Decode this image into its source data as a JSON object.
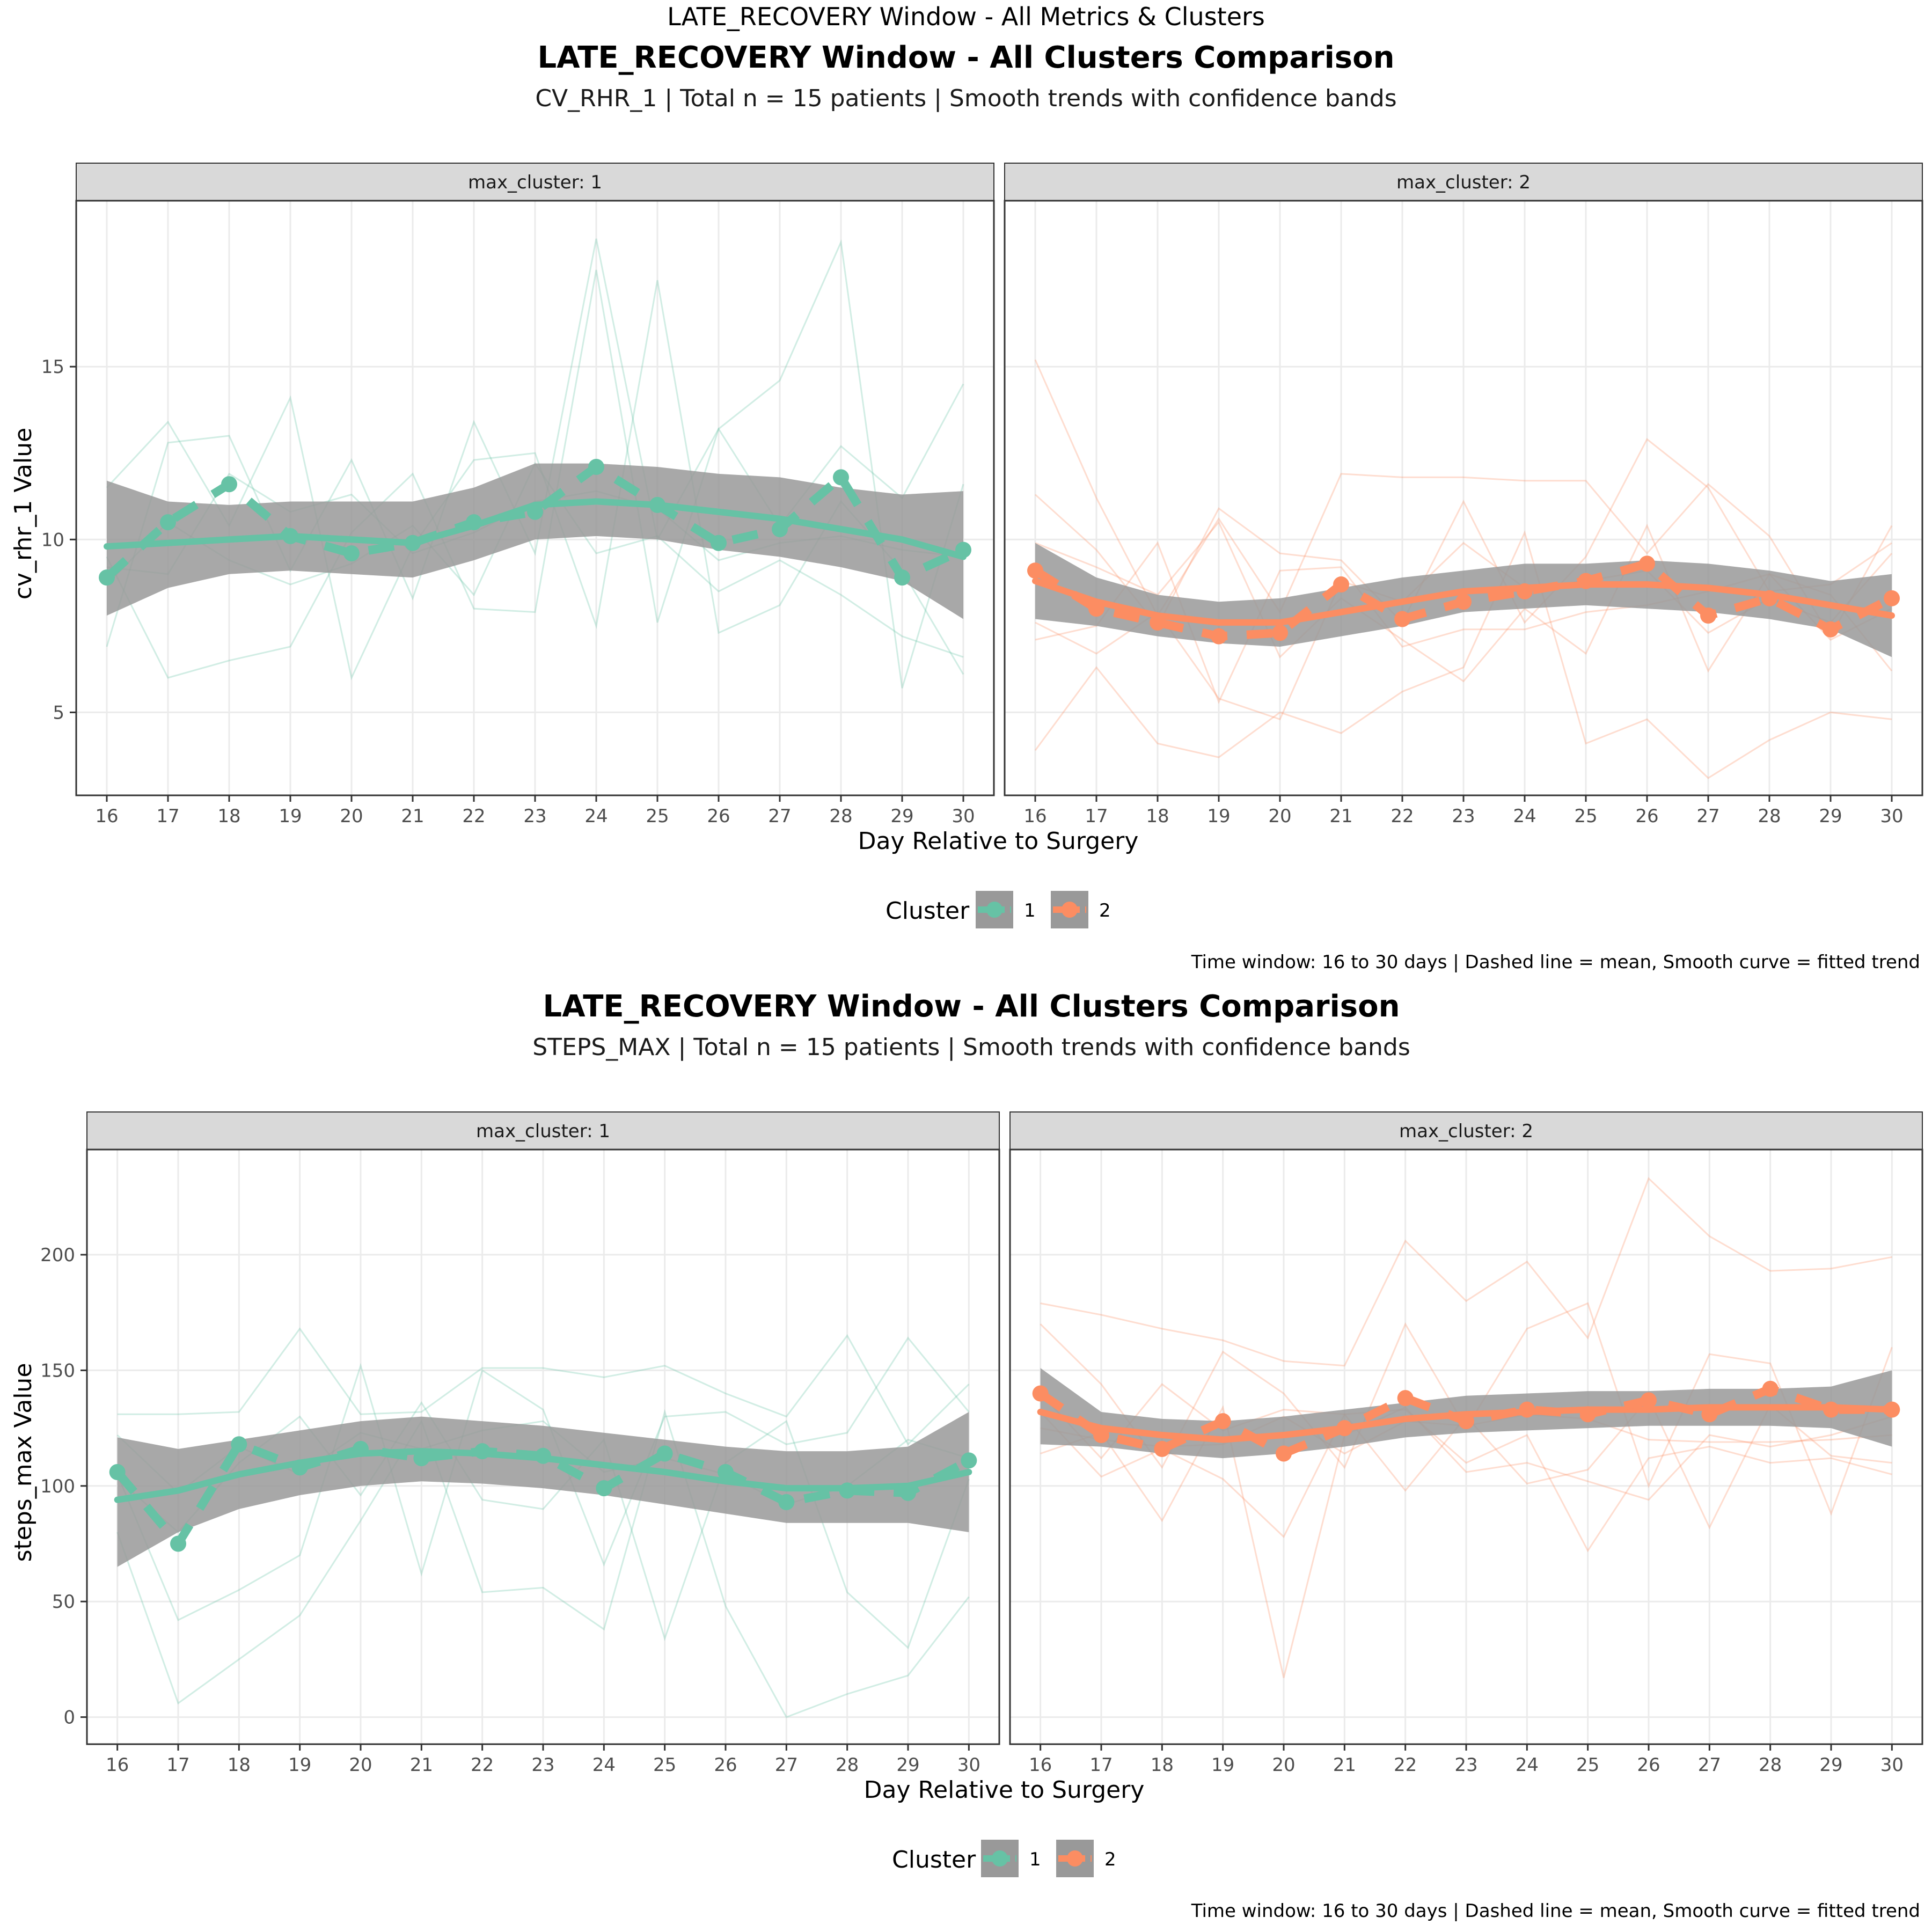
{
  "page_title": "LATE_RECOVERY Window - All Metrics & Clusters",
  "colors": {
    "cluster1": "#66c2a5",
    "cluster2": "#fc8d62",
    "band": "#999999",
    "strip_bg": "#d9d9d9",
    "grid": "#ebebeb"
  },
  "chart_data": [
    {
      "type": "line",
      "title": "LATE_RECOVERY Window - All Clusters Comparison",
      "subtitle": "CV_RHR_1 | Total n = 15 patients | Smooth trends with confidence bands",
      "xlabel": "Day Relative to Surgery",
      "ylabel": "cv_rhr_1 Value",
      "caption": "Time window: 16 to 30 days | Dashed line = mean, Smooth curve = fitted trend",
      "legend": {
        "title": "Cluster",
        "position": "bottom",
        "entries": [
          "1",
          "2"
        ]
      },
      "xlim": [
        15.5,
        30.5
      ],
      "ylim": [
        2.6,
        19.8
      ],
      "yticks": [
        5,
        10,
        15
      ],
      "x": [
        16,
        17,
        18,
        19,
        20,
        21,
        22,
        23,
        24,
        25,
        26,
        27,
        28,
        29,
        30
      ],
      "facets": [
        {
          "label": "max_cluster: 1",
          "cluster": "1",
          "patients": [
            [
              6.9,
              12.8,
              13.0,
              9.1,
              12.3,
              8.3,
              13.4,
              9.6,
              18.7,
              10.0,
              13.2,
              10.4,
              12.7,
              11.2,
              14.5
            ],
            [
              11.5,
              13.4,
              10.4,
              14.1,
              6.0,
              9.8,
              12.3,
              12.5,
              7.5,
              17.5,
              7.3,
              8.1,
              11.1,
              9.1,
              6.1
            ],
            [
              9.5,
              6.0,
              6.5,
              6.9,
              10.2,
              11.9,
              8.0,
              7.9,
              17.8,
              7.6,
              13.2,
              14.6,
              18.6,
              5.7,
              11.6
            ],
            [
              8.7,
              10.5,
              9.4,
              8.7,
              9.3,
              10.4,
              8.4,
              12.2,
              9.6,
              10.1,
              8.5,
              9.4,
              8.4,
              7.2,
              6.6
            ],
            [
              9.2,
              9.0,
              11.9,
              10.8,
              11.3,
              9.6,
              10.2,
              11.1,
              11.4,
              10.9,
              9.4,
              9.9,
              10.1,
              9.7,
              9.5
            ]
          ],
          "mean": [
            8.9,
            10.5,
            11.6,
            10.1,
            9.6,
            9.9,
            10.5,
            10.8,
            12.1,
            11.0,
            9.9,
            10.3,
            11.8,
            8.9,
            9.7
          ],
          "smooth": [
            9.8,
            9.9,
            10.0,
            10.1,
            10.0,
            9.9,
            10.4,
            11.0,
            11.1,
            11.0,
            10.8,
            10.6,
            10.3,
            10.0,
            9.5
          ],
          "ci_lower": [
            7.8,
            8.6,
            9.0,
            9.1,
            9.0,
            8.9,
            9.4,
            10.0,
            10.1,
            10.0,
            9.7,
            9.5,
            9.2,
            8.8,
            7.7
          ],
          "ci_upper": [
            11.7,
            11.1,
            11.0,
            11.1,
            11.1,
            11.1,
            11.5,
            12.2,
            12.2,
            12.1,
            11.9,
            11.8,
            11.5,
            11.3,
            11.4
          ]
        },
        {
          "label": "max_cluster: 2",
          "cluster": "2",
          "patients": [
            [
              15.2,
              11.2,
              7.8,
              10.6,
              7.9,
              11.9,
              11.8,
              11.8,
              11.7,
              11.7,
              9.6,
              11.6,
              10.1,
              7.2,
              10.4
            ],
            [
              11.3,
              9.7,
              7.5,
              10.9,
              9.6,
              9.4,
              7.6,
              11.1,
              7.6,
              9.5,
              12.9,
              11.5,
              8.5,
              8.7,
              9.9
            ],
            [
              7.1,
              7.5,
              9.9,
              5.3,
              9.1,
              9.2,
              6.9,
              7.4,
              7.4,
              7.9,
              8.1,
              8.5,
              9.0,
              7.1,
              8.0
            ],
            [
              3.9,
              6.3,
              4.1,
              3.7,
              5.0,
              4.4,
              5.6,
              6.3,
              10.2,
              4.1,
              4.8,
              3.1,
              4.2,
              5.0,
              4.8
            ],
            [
              9.9,
              9.2,
              8.4,
              10.5,
              6.6,
              8.3,
              7.1,
              5.9,
              8.0,
              6.7,
              10.4,
              6.2,
              9.0,
              8.4,
              6.2
            ],
            [
              7.6,
              6.7,
              7.9,
              5.4,
              4.8,
              8.8,
              8.2,
              9.9,
              8.6,
              8.8,
              9.1,
              7.3,
              8.3,
              7.6,
              9.6
            ]
          ],
          "mean": [
            9.1,
            8.0,
            7.6,
            7.2,
            7.3,
            8.7,
            7.7,
            8.2,
            8.5,
            8.8,
            9.3,
            7.8,
            8.3,
            7.4,
            8.3
          ],
          "smooth": [
            8.8,
            8.2,
            7.8,
            7.6,
            7.6,
            7.9,
            8.2,
            8.5,
            8.6,
            8.7,
            8.7,
            8.6,
            8.4,
            8.1,
            7.8
          ],
          "ci_lower": [
            7.7,
            7.5,
            7.2,
            7.0,
            6.9,
            7.2,
            7.5,
            7.9,
            8.0,
            8.1,
            8.0,
            7.9,
            7.7,
            7.4,
            6.6
          ],
          "ci_upper": [
            9.9,
            8.9,
            8.4,
            8.2,
            8.3,
            8.6,
            8.9,
            9.1,
            9.3,
            9.3,
            9.4,
            9.3,
            9.1,
            8.8,
            9.0
          ]
        }
      ]
    },
    {
      "type": "line",
      "title": "LATE_RECOVERY Window - All Clusters Comparison",
      "subtitle": "STEPS_MAX | Total n = 15 patients | Smooth trends with confidence bands",
      "xlabel": "Day Relative to Surgery",
      "ylabel": "steps_max Value",
      "caption": "Time window: 16 to 30 days | Dashed line = mean, Smooth curve = fitted trend",
      "legend": {
        "title": "Cluster",
        "position": "bottom",
        "entries": [
          "1",
          "2"
        ]
      },
      "xlim": [
        15.5,
        30.5
      ],
      "ylim": [
        -11.7,
        245.5
      ],
      "yticks": [
        0,
        50,
        100,
        150,
        200
      ],
      "x": [
        16,
        17,
        18,
        19,
        20,
        21,
        22,
        23,
        24,
        25,
        26,
        27,
        28,
        29,
        30
      ],
      "facets": [
        {
          "label": "max_cluster: 1",
          "cluster": "1",
          "patients": [
            [
              131,
              131,
              132,
              168,
              131,
              132,
              151,
              151,
              147,
              152,
              140,
              130,
              165,
              118,
              144
            ],
            [
              105,
              42,
              55,
              70,
              152,
              62,
              150,
              133,
              66,
              130,
              132,
              118,
              123,
              164,
              132
            ],
            [
              80,
              6,
              25,
              44,
              85,
              128,
              54,
              56,
              38,
              132,
              48,
              0,
              10,
              18,
              52
            ],
            [
              103,
              80,
              110,
              130,
              96,
              136,
              94,
              90,
              120,
              34,
              110,
              128,
              54,
              30,
              103
            ],
            [
              122,
              97,
              117,
              105,
              123,
              116,
              124,
              128,
              106,
              112,
              105,
              92,
              100,
              120,
              112
            ]
          ],
          "mean": [
            106,
            75,
            118,
            108,
            116,
            112,
            115,
            113,
            99,
            114,
            106,
            93,
            98,
            97,
            111
          ],
          "smooth": [
            94,
            98,
            105,
            110,
            114,
            115,
            114,
            112,
            109,
            106,
            102,
            99,
            99,
            100,
            106
          ],
          "ci_lower": [
            65,
            80,
            90,
            96,
            100,
            102,
            101,
            99,
            96,
            92,
            88,
            84,
            84,
            84,
            80
          ],
          "ci_upper": [
            121,
            116,
            120,
            124,
            128,
            130,
            128,
            126,
            123,
            120,
            117,
            115,
            115,
            117,
            132
          ]
        },
        {
          "label": "max_cluster: 2",
          "cluster": "2",
          "patients": [
            [
              179,
              174,
              168,
              163,
              154,
              152,
              206,
              180,
              197,
              164,
              233,
              208,
              193,
              194,
              199
            ],
            [
              170,
              144,
              108,
              158,
              140,
              108,
              170,
              125,
              168,
              179,
              100,
              157,
              153,
              88,
              160
            ],
            [
              140,
              112,
              144,
              124,
              133,
              131,
              98,
              130,
              101,
              107,
              138,
              82,
              135,
              113,
              110
            ],
            [
              132,
              104,
              116,
              103,
              78,
              131,
              133,
              110,
              122,
              72,
              112,
              117,
              110,
              112,
              105
            ],
            [
              114,
              123,
              85,
              134,
              17,
              122,
              134,
              106,
              110,
              102,
              94,
              122,
              117,
              122,
              130
            ],
            [
              125,
              120,
              117,
              118,
              130,
              114,
              128,
              126,
              131,
              129,
              120,
              119,
              119,
              120,
              122
            ]
          ],
          "mean": [
            140,
            122,
            116,
            128,
            114,
            125,
            138,
            128,
            133,
            131,
            137,
            131,
            142,
            133,
            133
          ],
          "smooth": [
            132,
            125,
            122,
            120,
            122,
            125,
            129,
            131,
            132,
            133,
            133,
            134,
            134,
            134,
            133
          ],
          "ci_lower": [
            118,
            117,
            114,
            112,
            114,
            117,
            121,
            123,
            124,
            125,
            126,
            126,
            126,
            125,
            117
          ],
          "ci_upper": [
            151,
            132,
            129,
            128,
            130,
            133,
            136,
            139,
            140,
            141,
            141,
            142,
            142,
            143,
            150
          ]
        }
      ]
    }
  ]
}
